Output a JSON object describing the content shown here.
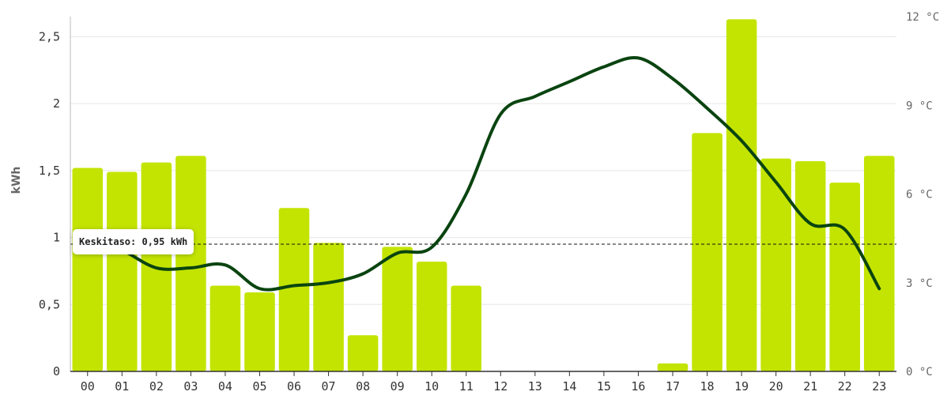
{
  "chart_data": {
    "type": "bar",
    "categories": [
      "00",
      "01",
      "02",
      "03",
      "04",
      "05",
      "06",
      "07",
      "08",
      "09",
      "10",
      "11",
      "12",
      "13",
      "14",
      "15",
      "16",
      "17",
      "18",
      "19",
      "20",
      "21",
      "22",
      "23"
    ],
    "series": [
      {
        "values": [
          1.52,
          1.49,
          1.56,
          1.61,
          0.64,
          0.59,
          1.22,
          0.96,
          0.27,
          0.93,
          0.82,
          0.64,
          0,
          0,
          0,
          0,
          0,
          0.06,
          1.78,
          2.63,
          1.59,
          1.57,
          1.41,
          1.61
        ]
      },
      {
        "type": "line",
        "axis": "right",
        "values": [
          4.5,
          4.1,
          3.5,
          3.5,
          3.6,
          2.8,
          2.9,
          3.0,
          3.3,
          4.0,
          4.2,
          6.0,
          8.7,
          9.3,
          9.8,
          10.3,
          10.6,
          9.9,
          8.9,
          7.8,
          6.4,
          5.0,
          4.8,
          2.8
        ]
      }
    ],
    "ylabel": "kWh",
    "ylim": [
      0,
      2.65
    ],
    "yticks": [
      "0",
      "0,5",
      "1",
      "1,5",
      "2",
      "2,5"
    ],
    "y2lim": [
      0,
      12
    ],
    "y2ticks": [
      "0 °C",
      "3 °C",
      "6 °C",
      "9 °C",
      "12 °C"
    ],
    "average": {
      "value": 0.95,
      "label": "Keskitaso: 0,95 kWh"
    },
    "grid": true,
    "colors": {
      "bars": "#c3e400",
      "line": "#0a4410",
      "grid": "#e6e6e6",
      "axis": "#333333"
    }
  }
}
